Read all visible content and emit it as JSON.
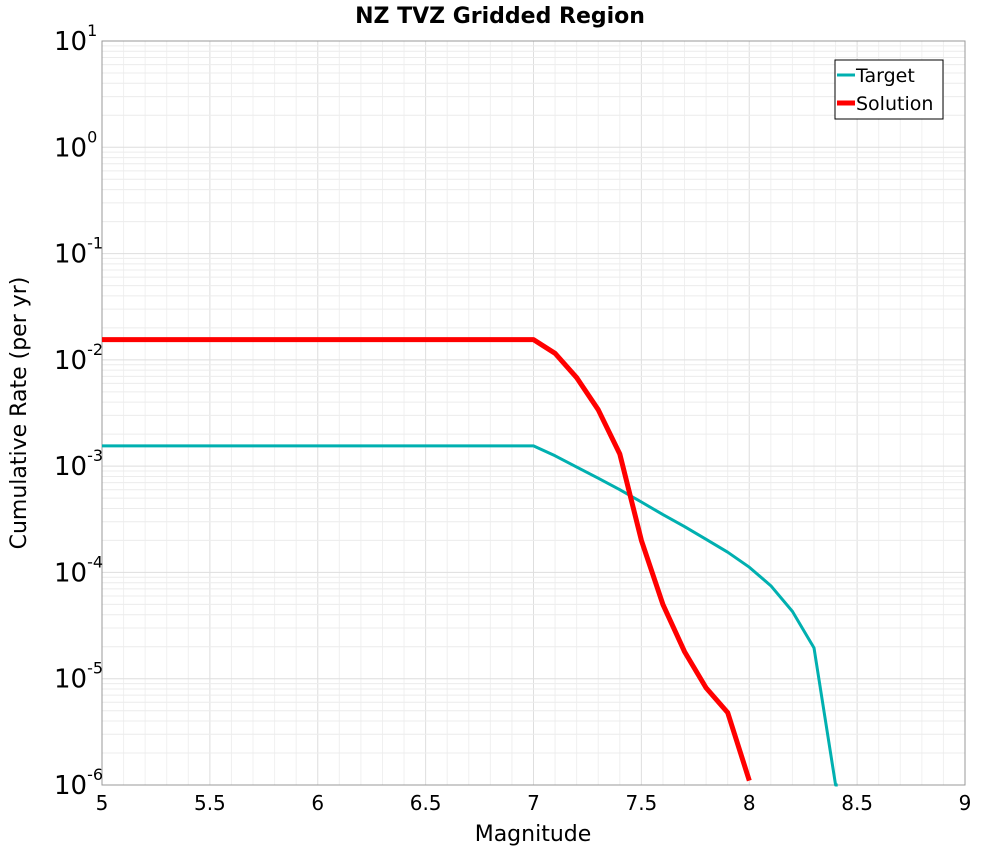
{
  "chart_data": {
    "type": "line",
    "title": "NZ TVZ Gridded Region",
    "xlabel": "Magnitude",
    "ylabel": "Cumulative Rate (per yr)",
    "xlim": [
      5,
      9
    ],
    "ylim": [
      1e-06,
      10
    ],
    "yscale": "log",
    "grid": true,
    "legend_position": "top-right",
    "x_ticks": [
      {
        "value": 5,
        "label": "5"
      },
      {
        "value": 5.5,
        "label": "5.5"
      },
      {
        "value": 6,
        "label": "6"
      },
      {
        "value": 6.5,
        "label": "6.5"
      },
      {
        "value": 7,
        "label": "7"
      },
      {
        "value": 7.5,
        "label": "7.5"
      },
      {
        "value": 8,
        "label": "8"
      },
      {
        "value": 8.5,
        "label": "8.5"
      },
      {
        "value": 9,
        "label": "9"
      }
    ],
    "y_ticks": [
      {
        "value": 10,
        "base": "10",
        "exp": "1"
      },
      {
        "value": 1,
        "base": "10",
        "exp": "0"
      },
      {
        "value": 0.1,
        "base": "10",
        "exp": "-1"
      },
      {
        "value": 0.01,
        "base": "10",
        "exp": "-2"
      },
      {
        "value": 0.001,
        "base": "10",
        "exp": "-3"
      },
      {
        "value": 0.0001,
        "base": "10",
        "exp": "-4"
      },
      {
        "value": 1e-05,
        "base": "10",
        "exp": "-5"
      },
      {
        "value": 1e-06,
        "base": "10",
        "exp": "-6"
      }
    ],
    "series": [
      {
        "name": "Target",
        "color": "#00B0B0",
        "x": [
          5.0,
          7.0,
          7.1,
          7.2,
          7.3,
          7.4,
          7.5,
          7.6,
          7.7,
          7.8,
          7.9,
          8.0,
          8.1,
          8.2,
          8.3,
          8.4,
          8.41
        ],
        "y": [
          0.00155,
          0.00155,
          0.00125,
          0.00098,
          0.00077,
          0.0006,
          0.00046,
          0.00035,
          0.00027,
          0.000205,
          0.000155,
          0.000112,
          7.5e-05,
          4.3e-05,
          1.95e-05,
          1e-06,
          1e-06
        ]
      },
      {
        "name": "Solution",
        "color": "#FF0000",
        "x": [
          5.0,
          7.0,
          7.1,
          7.2,
          7.3,
          7.4,
          7.5,
          7.6,
          7.7,
          7.8,
          7.9,
          8.0
        ],
        "y": [
          0.0155,
          0.0155,
          0.0115,
          0.0068,
          0.0034,
          0.0013,
          0.0002,
          5e-05,
          1.8e-05,
          8.2e-06,
          4.8e-06,
          1.1e-06
        ]
      }
    ]
  }
}
